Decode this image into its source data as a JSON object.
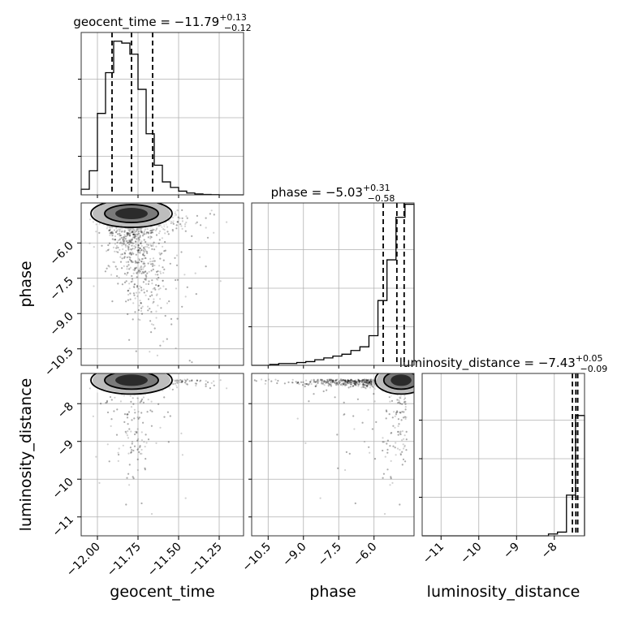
{
  "chart_data": {
    "type": "corner",
    "parameters": [
      "geocent_time",
      "phase",
      "luminosity_distance"
    ],
    "titles": [
      {
        "param": "geocent_time",
        "prefix": "geocent_time = ",
        "median": "−11.79",
        "plus": "+0.13",
        "minus": "−0.12"
      },
      {
        "param": "phase",
        "prefix": "phase = ",
        "median": "−5.03",
        "plus": "+0.31",
        "minus": "−0.58"
      },
      {
        "param": "luminosity_distance",
        "prefix": "luminosity_distance = ",
        "median": "−7.43",
        "plus": "+0.05",
        "minus": "−0.09"
      }
    ],
    "ranges": {
      "geocent_time": [
        -12.1,
        -11.1
      ],
      "phase": [
        -11.2,
        -4.3
      ],
      "luminosity_distance": [
        -11.5,
        -7.2
      ]
    },
    "ticks": {
      "geocent_time": {
        "values": [
          -12.0,
          -11.75,
          -11.5,
          -11.25
        ],
        "labels": [
          "−12.00",
          "−11.75",
          "−11.50",
          "−11.25"
        ]
      },
      "phase": {
        "values": [
          -10.5,
          -9.0,
          -7.5,
          -6.0
        ],
        "labels": [
          "−10.5",
          "−9.0",
          "−7.5",
          "−6.0"
        ]
      },
      "luminosity_distance": {
        "values": [
          -11,
          -10,
          -9,
          -8
        ],
        "labels": [
          "−11",
          "−10",
          "−9",
          "−8"
        ]
      }
    },
    "quantiles": {
      "geocent_time": [
        -11.91,
        -11.79,
        -11.66
      ],
      "phase": [
        -5.61,
        -5.03,
        -4.72
      ],
      "luminosity_distance": [
        -7.52,
        -7.43,
        -7.38
      ]
    },
    "hist_1d": {
      "geocent_time": [
        0.03,
        0.13,
        0.44,
        0.66,
        0.83,
        0.82,
        0.76,
        0.57,
        0.33,
        0.16,
        0.07,
        0.04,
        0.02,
        0.01,
        0.005,
        0.002,
        0.001,
        0,
        0,
        0
      ],
      "phase": [
        0,
        0,
        0.005,
        0.01,
        0.01,
        0.015,
        0.02,
        0.03,
        0.04,
        0.05,
        0.06,
        0.08,
        0.1,
        0.16,
        0.35,
        0.57,
        0.8,
        0.87
      ],
      "luminosity_distance": [
        0,
        0,
        0,
        0,
        0,
        0,
        0,
        0,
        0,
        0,
        0,
        0,
        0,
        0,
        0.01,
        0.02,
        0.22,
        0.65
      ]
    },
    "grid": true
  }
}
